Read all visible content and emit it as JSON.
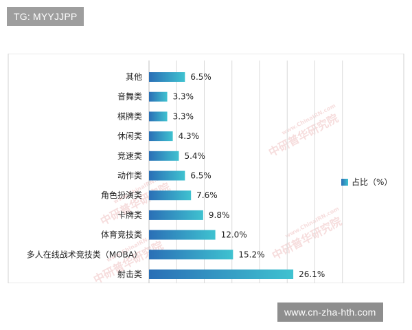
{
  "overlay": {
    "top_tag": "TG: MYYJJPP",
    "bottom_tag": "www.cn-zha-hth.com"
  },
  "watermark": {
    "text": "中研普华研究院",
    "site": "www.ChinaIRN.com"
  },
  "colors": {
    "bar_start": "#2a6fb6",
    "bar_end": "#3fc2d0",
    "grid": "#d9d9d9",
    "axis": "#bfbfbf",
    "chart_border": "#d0d0d0"
  },
  "chart_data": {
    "type": "bar",
    "orientation": "horizontal",
    "categories": [
      "其他",
      "音舞类",
      "棋牌类",
      "休闲类",
      "竞速类",
      "动作类",
      "角色扮演类",
      "卡牌类",
      "体育竞技类",
      "多人在线战术竞技类（MOBA）",
      "射击类"
    ],
    "series": [
      {
        "name": "占比（%）",
        "values": [
          6.5,
          3.3,
          3.3,
          4.3,
          5.4,
          6.5,
          7.6,
          9.8,
          12.0,
          15.2,
          26.1
        ]
      }
    ],
    "value_labels": [
      "6.5%",
      "3.3%",
      "3.3%",
      "4.3%",
      "5.4%",
      "6.5%",
      "7.6%",
      "9.8%",
      "12.0%",
      "15.2%",
      "26.1%"
    ],
    "title": "",
    "xlabel": "",
    "ylabel": "",
    "xlim": [
      0,
      35
    ],
    "grid": true,
    "legend_position": "right"
  }
}
